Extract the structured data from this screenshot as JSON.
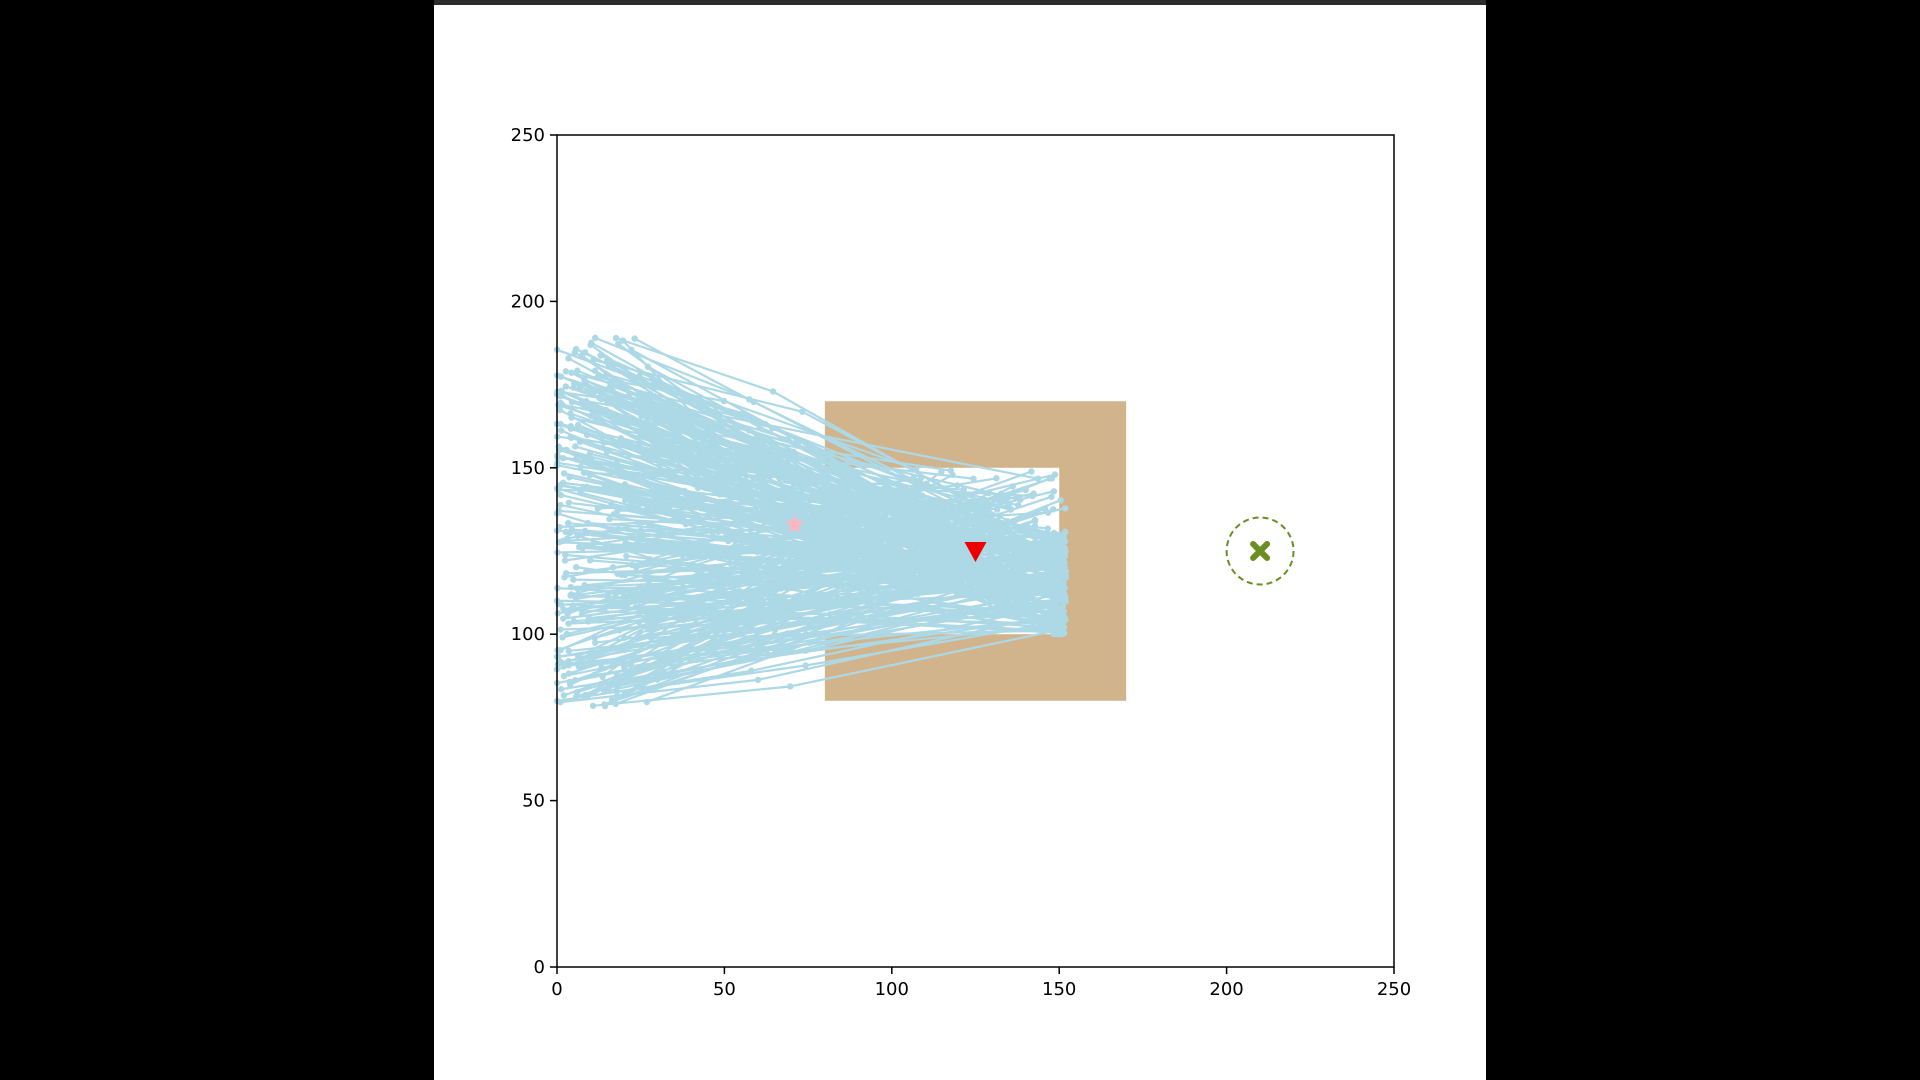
{
  "chart_data": {
    "type": "scatter",
    "title": "",
    "xlabel": "",
    "ylabel": "",
    "xlim": [
      0,
      250
    ],
    "ylim": [
      0,
      250
    ],
    "xticks": [
      0,
      50,
      100,
      150,
      200,
      250
    ],
    "yticks": [
      0,
      50,
      100,
      150,
      200,
      250
    ],
    "xtick_labels": [
      "0",
      "50",
      "100",
      "150",
      "200",
      "250"
    ],
    "ytick_labels": [
      "0",
      "50",
      "100",
      "150",
      "200",
      "250"
    ],
    "grid": false,
    "obstacle": {
      "color": "#d2b48c",
      "outer": {
        "x": [
          80,
          170
        ],
        "y": [
          80,
          170
        ]
      },
      "cavity": {
        "x": [
          80,
          150
        ],
        "y": [
          100,
          150
        ]
      }
    },
    "trajectories": {
      "color": "#add8e6",
      "count": 320,
      "start_x_range": [
        0,
        30
      ],
      "start_y_range": [
        78,
        190
      ],
      "end_x_range": [
        105,
        152
      ],
      "end_y_range": [
        100,
        150
      ]
    },
    "markers": [
      {
        "name": "star",
        "shape": "star",
        "x": 71,
        "y": 133,
        "color": "#ffb6c1"
      },
      {
        "name": "triangle",
        "shape": "triangle-down",
        "x": 125,
        "y": 125,
        "color": "#ee0000"
      },
      {
        "name": "cross",
        "shape": "x",
        "x": 210,
        "y": 125,
        "color": "#6b8e23"
      }
    ],
    "goal_circle": {
      "x": 210,
      "y": 125,
      "radius": 10,
      "color": "#6b8e23",
      "style": "dashed"
    }
  }
}
